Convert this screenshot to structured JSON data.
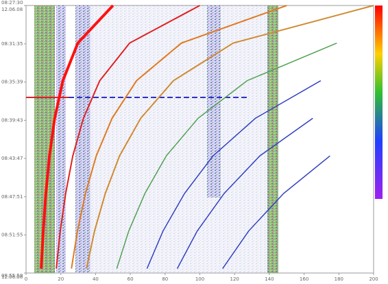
{
  "chart_data": {
    "type": "waterfall-lines",
    "start_date": "12.06.08",
    "end_date": "12.06.08",
    "x": [
      0,
      4,
      8,
      12,
      16,
      20,
      24,
      28
    ],
    "xlim": [
      0,
      200
    ],
    "xticks": [
      0,
      20,
      40,
      60,
      80,
      100,
      120,
      140,
      160,
      180,
      200
    ],
    "ylim": [
      0,
      28.47
    ],
    "yticks": [
      {
        "value": 0,
        "label": "08:27:30"
      },
      {
        "value": 4.08,
        "label": "08:31:35"
      },
      {
        "value": 8.15,
        "label": "08:35:39"
      },
      {
        "value": 12.22,
        "label": "08:39:43"
      },
      {
        "value": 16.28,
        "label": "08:43:47"
      },
      {
        "value": 20.35,
        "label": "08:47:51"
      },
      {
        "value": 24.42,
        "label": "08:51:55"
      },
      {
        "value": 28.47,
        "label": "08:55:58"
      }
    ],
    "series": [
      {
        "color": "#ff1010",
        "width": 4,
        "values": [
          50,
          29.8,
          21.2,
          16.5,
          13.5,
          11.4,
          9.9,
          8.7
        ]
      },
      {
        "color": "#e02020",
        "width": 2,
        "values": [
          100,
          59.6,
          42.4,
          33.0,
          26.9,
          22.8,
          19.7,
          17.4
        ]
      },
      {
        "color": "#e07a20",
        "width": 2,
        "values": [
          150,
          89.4,
          63.6,
          49.5,
          40.4,
          34.2,
          29.6,
          26.1
        ]
      },
      {
        "color": "#d08a30",
        "width": 2,
        "values": [
          200,
          119.2,
          84.8,
          66.0,
          53.8,
          45.6,
          39.4,
          34.8
        ]
      },
      {
        "color": "#50a050",
        "width": 1.5,
        "values": [
          null,
          178.8,
          127.2,
          99.0,
          80.7,
          68.4,
          59.1,
          52.2
        ]
      },
      {
        "color": "#3040c0",
        "width": 1.5,
        "values": [
          null,
          null,
          169.6,
          132.0,
          107.6,
          91.2,
          78.8,
          69.6
        ]
      },
      {
        "color": "#3040c0",
        "width": 1.5,
        "values": [
          null,
          null,
          null,
          165,
          134.5,
          114,
          98.5,
          87
        ]
      },
      {
        "color": "#3040c0",
        "width": 1.5,
        "values": [
          null,
          null,
          null,
          null,
          174.9,
          148.2,
          128.1,
          113.1
        ]
      }
    ]
  }
}
